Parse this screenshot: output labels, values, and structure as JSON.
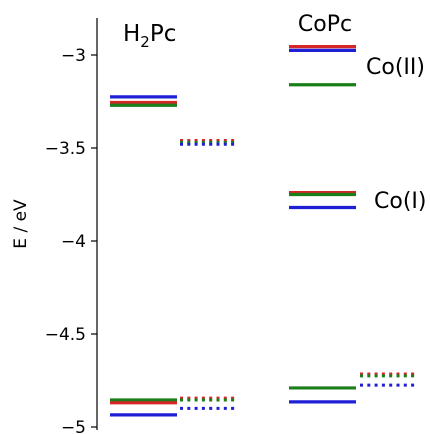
{
  "chart_data": {
    "type": "energy-level-diagram",
    "ylabel": "E / eV",
    "ylim": [
      -5.0,
      -2.8
    ],
    "yticks": [
      -3,
      -3.5,
      -4,
      -4.5,
      -5
    ],
    "ytick_labels": [
      "−3",
      "−3.5",
      "−4",
      "−4.5",
      "−5"
    ],
    "column_titles": [
      {
        "column": "H2Pc",
        "text": "H",
        "sub": "2",
        "text2": "Pc"
      },
      {
        "column": "CoPc",
        "text": "CoPc"
      }
    ],
    "annotations": [
      {
        "text": "Co(II)",
        "y": -3.06
      },
      {
        "text": "Co(I)",
        "y": -3.78
      }
    ],
    "colors": {
      "red": "#d62728",
      "green": "#1a7f1a",
      "blue": "#1f1fd6"
    },
    "levels": [
      {
        "column": "H2Pc",
        "style": "solid",
        "color": "blue",
        "y": -3.225
      },
      {
        "column": "H2Pc",
        "style": "solid",
        "color": "red",
        "y": -3.255
      },
      {
        "column": "H2Pc",
        "style": "solid",
        "color": "green",
        "y": -3.27
      },
      {
        "column": "H2Pc-dot",
        "style": "dotted",
        "color": "red",
        "y": -3.46
      },
      {
        "column": "H2Pc-dot",
        "style": "dotted",
        "color": "green",
        "y": -3.47
      },
      {
        "column": "H2Pc-dot",
        "style": "dotted",
        "color": "blue",
        "y": -3.48
      },
      {
        "column": "H2Pc",
        "style": "solid",
        "color": "green",
        "y": -4.855
      },
      {
        "column": "H2Pc",
        "style": "solid",
        "color": "red",
        "y": -4.87
      },
      {
        "column": "H2Pc",
        "style": "solid",
        "color": "blue",
        "y": -4.935
      },
      {
        "column": "H2Pc-dot",
        "style": "dotted",
        "color": "red",
        "y": -4.845
      },
      {
        "column": "H2Pc-dot",
        "style": "dotted",
        "color": "green",
        "y": -4.855
      },
      {
        "column": "H2Pc-dot",
        "style": "dotted",
        "color": "blue",
        "y": -4.9
      },
      {
        "column": "CoPc",
        "style": "solid",
        "color": "red",
        "y": -2.955
      },
      {
        "column": "CoPc",
        "style": "solid",
        "color": "blue",
        "y": -2.975
      },
      {
        "column": "CoPc",
        "style": "solid",
        "color": "green",
        "y": -3.16
      },
      {
        "column": "CoPc",
        "style": "solid",
        "color": "red",
        "y": -3.74
      },
      {
        "column": "CoPc",
        "style": "solid",
        "color": "green",
        "y": -3.75
      },
      {
        "column": "CoPc",
        "style": "solid",
        "color": "blue",
        "y": -3.82
      },
      {
        "column": "CoPc",
        "style": "solid",
        "color": "green",
        "y": -4.79
      },
      {
        "column": "CoPc",
        "style": "solid",
        "color": "blue",
        "y": -4.865
      },
      {
        "column": "CoPc-dot",
        "style": "dotted",
        "color": "red",
        "y": -4.715
      },
      {
        "column": "CoPc-dot",
        "style": "dotted",
        "color": "green",
        "y": -4.725
      },
      {
        "column": "CoPc-dot",
        "style": "dotted",
        "color": "blue",
        "y": -4.775
      }
    ]
  }
}
